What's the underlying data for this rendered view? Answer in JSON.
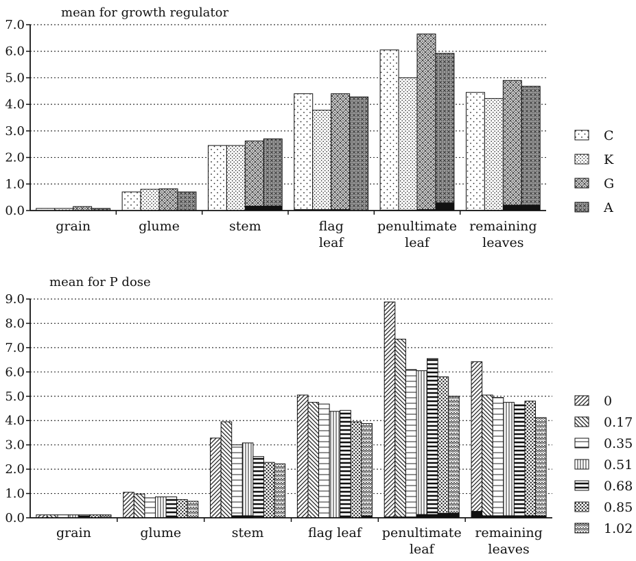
{
  "chart_data": [
    {
      "type": "bar",
      "title": "mean for growth regulator",
      "xlabel": "",
      "ylabel": "",
      "ylim": [
        0,
        7
      ],
      "yticks": [
        "0.0",
        "1.0",
        "2.0",
        "3.0",
        "4.0",
        "5.0",
        "6.0",
        "7.0"
      ],
      "grid": "horizontal dotted",
      "legend_position": "right",
      "categories": [
        [
          "grain"
        ],
        [
          "glume"
        ],
        [
          "stem"
        ],
        [
          "flag",
          "leaf"
        ],
        [
          "penultimate",
          "leaf"
        ],
        [
          "remaining",
          "leaves"
        ]
      ],
      "series": [
        {
          "name": "C",
          "pattern": "sparse-dots",
          "values": [
            0.08,
            0.7,
            2.45,
            4.4,
            6.05,
            4.45
          ],
          "base": [
            0.0,
            0.0,
            0.0,
            0.05,
            0.03,
            0.02
          ]
        },
        {
          "name": "K",
          "pattern": "dense-dots",
          "values": [
            0.08,
            0.8,
            2.45,
            3.78,
            5.0,
            4.22
          ],
          "base": [
            0.0,
            0.0,
            0.0,
            0.05,
            0.03,
            0.02
          ]
        },
        {
          "name": "G",
          "pattern": "dotted-crosshatch",
          "values": [
            0.15,
            0.82,
            2.62,
            4.4,
            6.65,
            4.9
          ],
          "base": [
            0.0,
            0.0,
            0.18,
            0.05,
            0.05,
            0.22
          ]
        },
        {
          "name": "A",
          "pattern": "dotted-crosshatch-dark",
          "values": [
            0.08,
            0.7,
            2.7,
            4.28,
            5.92,
            4.68
          ],
          "base": [
            0.0,
            0.0,
            0.18,
            0.0,
            0.3,
            0.22
          ]
        }
      ]
    },
    {
      "type": "bar",
      "title": "mean for P dose",
      "xlabel": "",
      "ylabel": "",
      "ylim": [
        0,
        9
      ],
      "yticks": [
        "0.0",
        "1.0",
        "2.0",
        "3.0",
        "4.0",
        "5.0",
        "6.0",
        "7.0",
        "8.0",
        "9.0"
      ],
      "grid": "horizontal dotted",
      "legend_position": "right",
      "categories": [
        [
          "grain"
        ],
        [
          "glume"
        ],
        [
          "stem"
        ],
        [
          "flag leaf"
        ],
        [
          "penultimate",
          "leaf"
        ],
        [
          "remaining",
          "leaves"
        ]
      ],
      "series": [
        {
          "name": "0",
          "pattern": "diagonal-right",
          "values": [
            0.12,
            1.05,
            3.28,
            5.05,
            8.88,
            6.42
          ],
          "base": [
            0.0,
            0.0,
            0.0,
            0.0,
            0.05,
            0.28
          ]
        },
        {
          "name": "0.17",
          "pattern": "diagonal-left",
          "values": [
            0.12,
            0.98,
            3.95,
            4.75,
            7.35,
            5.05
          ],
          "base": [
            0.0,
            0.0,
            0.0,
            0.0,
            0.05,
            0.1
          ]
        },
        {
          "name": "0.35",
          "pattern": "horizontal-lines",
          "values": [
            0.12,
            0.82,
            3.0,
            4.68,
            6.1,
            4.95
          ],
          "base": [
            0.0,
            0.0,
            0.1,
            0.0,
            0.05,
            0.1
          ]
        },
        {
          "name": "0.51",
          "pattern": "vertical-lines",
          "values": [
            0.12,
            0.86,
            3.08,
            4.38,
            6.05,
            4.75
          ],
          "base": [
            0.0,
            0.0,
            0.1,
            0.0,
            0.15,
            0.1
          ]
        },
        {
          "name": "0.68",
          "pattern": "bold-horizontal-lines",
          "values": [
            0.12,
            0.86,
            2.52,
            4.42,
            6.55,
            4.65
          ],
          "base": [
            0.0,
            0.0,
            0.0,
            0.0,
            0.15,
            0.1
          ]
        },
        {
          "name": "0.85",
          "pattern": "heavy-dots",
          "values": [
            0.12,
            0.75,
            2.28,
            3.95,
            5.8,
            4.8
          ],
          "base": [
            0.0,
            0.0,
            0.0,
            0.0,
            0.2,
            0.1
          ]
        },
        {
          "name": "1.02",
          "pattern": "zigzag",
          "values": [
            0.12,
            0.68,
            2.22,
            3.88,
            5.0,
            4.12
          ],
          "base": [
            0.0,
            0.0,
            0.0,
            0.1,
            0.2,
            0.1
          ]
        }
      ]
    }
  ]
}
